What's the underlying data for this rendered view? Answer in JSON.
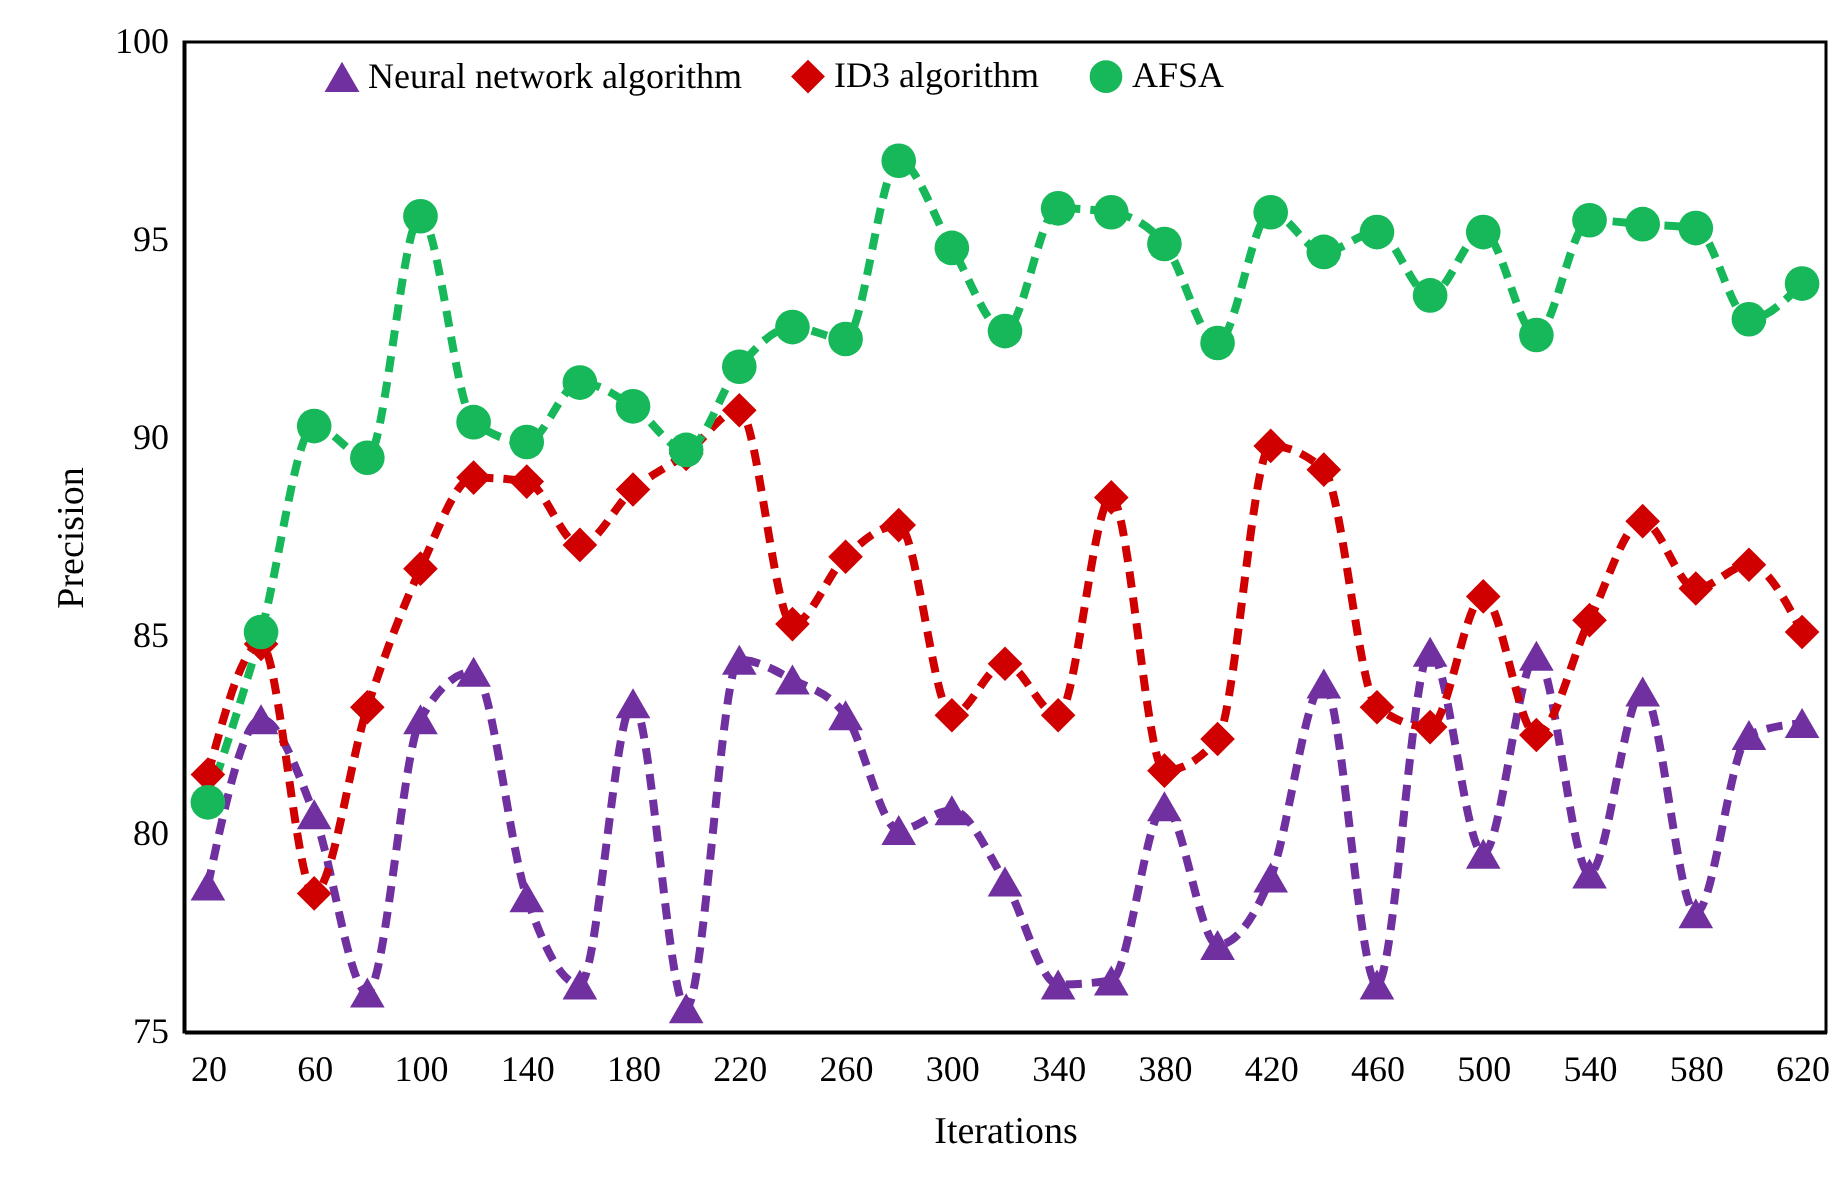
{
  "chart_data": {
    "type": "line",
    "xlabel": "Iterations",
    "ylabel": "Precision",
    "x": [
      20,
      40,
      60,
      80,
      100,
      120,
      140,
      160,
      180,
      200,
      220,
      240,
      260,
      280,
      300,
      320,
      340,
      360,
      380,
      400,
      420,
      440,
      460,
      480,
      500,
      520,
      540,
      560,
      580,
      600,
      620
    ],
    "xlim": [
      11,
      629
    ],
    "xticks": [
      20,
      60,
      100,
      140,
      180,
      220,
      260,
      300,
      340,
      380,
      420,
      460,
      500,
      540,
      580,
      620
    ],
    "ylim": [
      75,
      100
    ],
    "yticks": [
      75,
      80,
      85,
      90,
      95,
      100
    ],
    "grid": false,
    "legend": "top",
    "line_style": "dashed",
    "series": [
      {
        "name": "Neural network algorithm",
        "color": "#7030a0",
        "marker": "triangle",
        "values": [
          78.7,
          82.9,
          80.5,
          76.0,
          82.9,
          84.1,
          78.4,
          76.2,
          83.3,
          75.6,
          84.4,
          83.9,
          83.0,
          80.1,
          80.6,
          78.8,
          76.2,
          76.3,
          80.7,
          77.2,
          78.9,
          83.8,
          76.2,
          84.6,
          79.5,
          84.5,
          79.0,
          83.6,
          78.0,
          82.5,
          82.8
        ]
      },
      {
        "name": "ID3 algorithm",
        "color": "#d00000",
        "marker": "diamond",
        "values": [
          81.5,
          84.8,
          78.5,
          83.2,
          86.7,
          89.0,
          88.9,
          87.3,
          88.7,
          89.6,
          90.7,
          85.3,
          87.0,
          87.8,
          83.0,
          84.3,
          83.0,
          88.5,
          81.6,
          82.4,
          89.8,
          89.2,
          83.2,
          82.7,
          86.0,
          82.5,
          85.4,
          87.9,
          86.2,
          86.8,
          85.1
        ]
      },
      {
        "name": "AFSA",
        "color": "#17b85a",
        "marker": "circle",
        "values": [
          80.8,
          85.1,
          90.3,
          89.5,
          95.6,
          90.4,
          89.9,
          91.4,
          90.8,
          89.7,
          91.8,
          92.8,
          92.5,
          97.0,
          94.8,
          92.7,
          95.8,
          95.7,
          94.9,
          92.4,
          95.7,
          94.7,
          95.2,
          93.6,
          95.2,
          92.6,
          95.5,
          95.4,
          95.3,
          93.0,
          93.9
        ]
      }
    ]
  }
}
